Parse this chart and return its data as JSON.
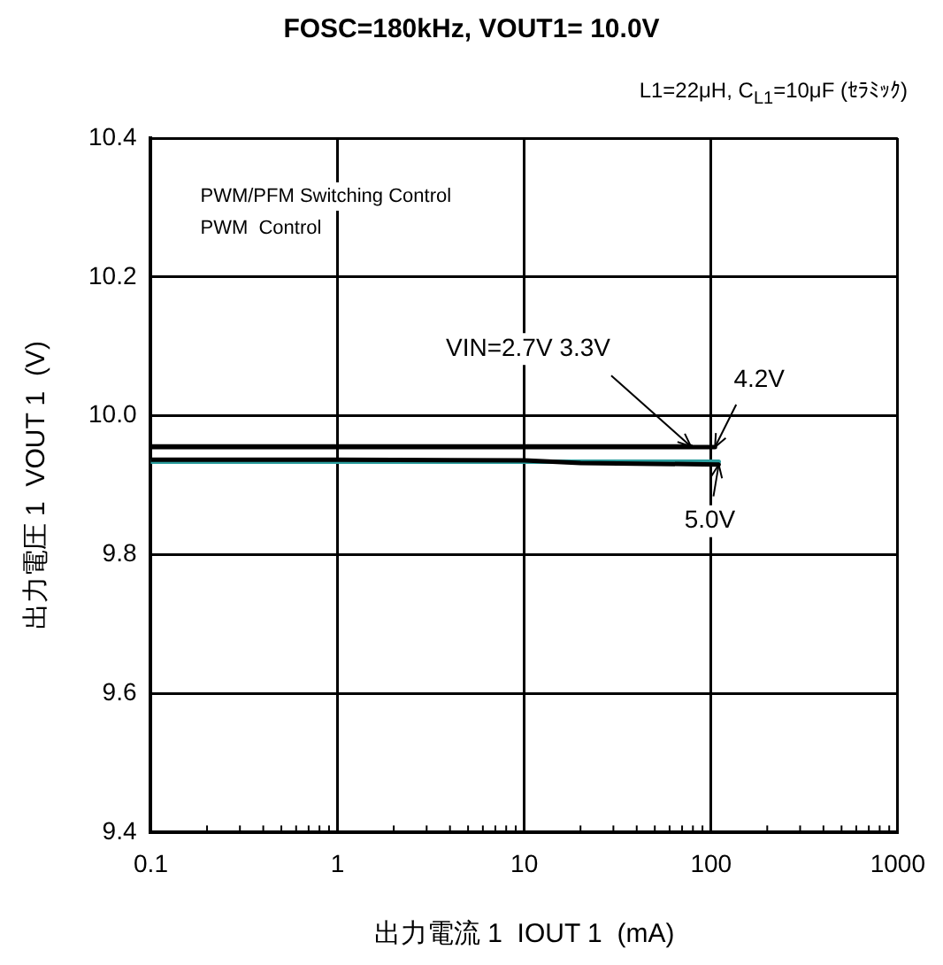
{
  "chart_data": {
    "type": "line",
    "title": "FOSC=180kHz, VOUT1= 10.0V",
    "subtitle": "L1=22μH, C$_{L1}$=10μF (ｾﾗﾐｯｸ)",
    "xlabel": "出力電流 1  IOUT 1  (mA)",
    "ylabel": "出力電圧 1  VOUT 1  (V)",
    "annotations": [
      "PWM/PFM Switching Control",
      "PWM  Control",
      {
        "text": "VIN=2.7V 3.3V",
        "x": 78,
        "y": 9.956
      },
      {
        "text": "4.2V",
        "x": 105,
        "y": 9.955
      },
      {
        "text": "5.0V",
        "x": 110,
        "y": 9.93
      }
    ],
    "log": "x",
    "grid": true,
    "legend": false,
    "marker": "none",
    "line_style": "solid",
    "xlim": [
      0.1,
      1000
    ],
    "xticks": [
      0.1,
      {
        "value": 0.2,
        "label": null
      },
      {
        "value": 0.3,
        "label": null
      },
      {
        "value": 0.4,
        "label": null
      },
      {
        "value": 0.5,
        "label": null
      },
      {
        "value": 0.6,
        "label": null
      },
      {
        "value": 0.7,
        "label": null
      },
      {
        "value": 0.8,
        "label": null
      },
      {
        "value": 0.9,
        "label": null
      },
      1,
      {
        "value": 2,
        "label": null
      },
      {
        "value": 3,
        "label": null
      },
      {
        "value": 4,
        "label": null
      },
      {
        "value": 5,
        "label": null
      },
      {
        "value": 6,
        "label": null
      },
      {
        "value": 7,
        "label": null
      },
      {
        "value": 8,
        "label": null
      },
      {
        "value": 9,
        "label": null
      },
      10,
      {
        "value": 20,
        "label": null
      },
      {
        "value": 30,
        "label": null
      },
      {
        "value": 40,
        "label": null
      },
      {
        "value": 50,
        "label": null
      },
      {
        "value": 60,
        "label": null
      },
      {
        "value": 70,
        "label": null
      },
      {
        "value": 80,
        "label": null
      },
      {
        "value": 90,
        "label": null
      },
      100,
      {
        "value": 200,
        "label": null
      },
      {
        "value": 300,
        "label": null
      },
      {
        "value": 400,
        "label": null
      },
      {
        "value": 500,
        "label": null
      },
      {
        "value": 600,
        "label": null
      },
      {
        "value": 700,
        "label": null
      },
      {
        "value": 800,
        "label": null
      },
      {
        "value": 900,
        "label": null
      },
      1000
    ],
    "ylim": [
      9.4,
      10.4
    ],
    "yticks": [
      9.4,
      9.6,
      9.8,
      {
        "value": 10,
        "label": "10.0"
      },
      10.2,
      10.4
    ],
    "series": [
      {
        "color": "#000000",
        "x": [
          0.1,
          1,
          10,
          78
        ],
        "values": [
          9.956,
          9.956,
          9.956,
          9.956
        ]
      },
      {
        "color": "#000000",
        "x": [
          0.1,
          1,
          10,
          105
        ],
        "values": [
          9.955,
          9.955,
          9.955,
          9.955
        ]
      },
      {
        "color": "#000000",
        "x": [
          0.1,
          1,
          10,
          20,
          50,
          110
        ],
        "values": [
          9.937,
          9.937,
          9.936,
          9.932,
          9.931,
          9.93
        ]
      },
      {
        "color": "#2a9d9d",
        "x": [
          0.1,
          1,
          10,
          110
        ],
        "values": [
          9.934,
          9.934,
          9.934,
          9.934
        ]
      }
    ]
  }
}
